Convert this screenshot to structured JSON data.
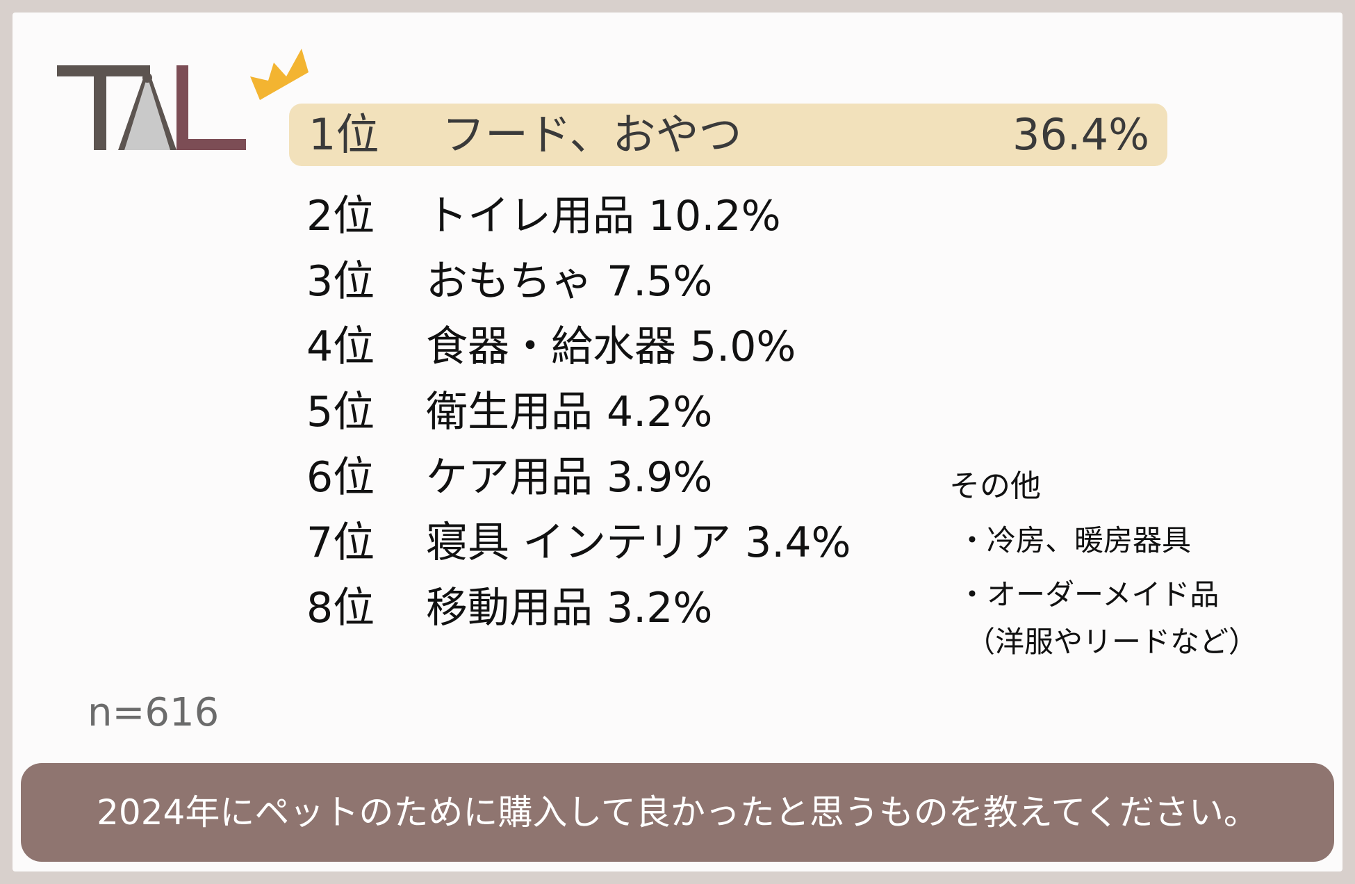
{
  "logo": {
    "text": "TAL",
    "icon": "crown-icon",
    "colors": {
      "t": "#5c5450",
      "a": "#bdbdbd",
      "l": "#7c4d55",
      "crown": "#f3b431"
    }
  },
  "ranking": [
    {
      "rank": "1位",
      "name": "フード、おやつ",
      "value": "36.4%"
    },
    {
      "rank": "2位",
      "name": "トイレ用品",
      "value": "10.2%"
    },
    {
      "rank": "3位",
      "name": "おもちゃ",
      "value": "7.5%"
    },
    {
      "rank": "4位",
      "name": "食器・給水器",
      "value": "5.0%"
    },
    {
      "rank": "5位",
      "name": "衛生用品",
      "value": "4.2%"
    },
    {
      "rank": "6位",
      "name": "ケア用品",
      "value": "3.9%"
    },
    {
      "rank": "7位",
      "name": "寝具 インテリア",
      "value": "3.4%"
    },
    {
      "rank": "8位",
      "name": "移動用品",
      "value": "3.2%"
    }
  ],
  "others": {
    "title": "その他",
    "items": [
      "・冷房、暖房器具",
      "・オーダーメイド品"
    ],
    "note": "（洋服やリードなど）"
  },
  "sample": "n=616",
  "question": "2024年にペットのために購入して良かったと思うものを教えてください。",
  "colors": {
    "highlight": "#f2e1bb",
    "banner": "#8f7570",
    "frame": "#d8d0cc"
  }
}
